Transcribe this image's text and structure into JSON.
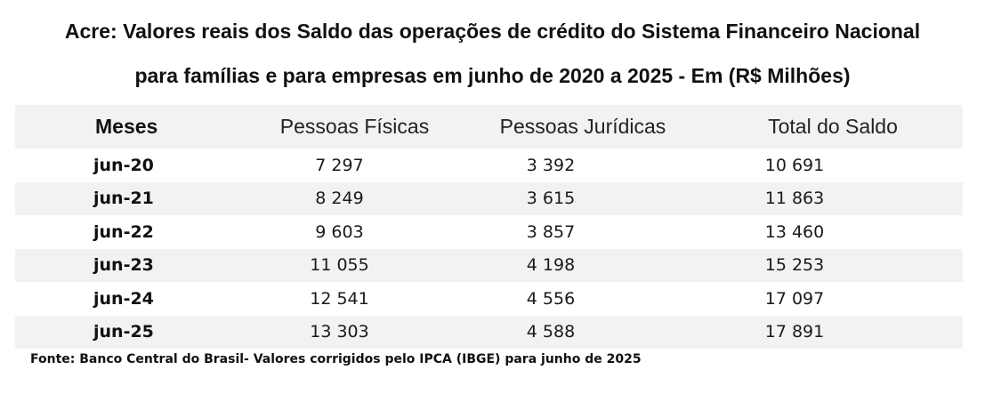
{
  "title": {
    "line1": "Acre: Valores reais dos Saldo das operações de crédito do Sistema Financeiro Nacional",
    "line2": "para famílias e para empresas em junho de 2020 a 2025 - Em (R$ Milhões)"
  },
  "table": {
    "headers": [
      "Meses",
      "Pessoas Físicas",
      "Pessoas Jurídicas",
      "Total do Saldo"
    ],
    "rows": [
      {
        "month": "jun-20",
        "pf": "7 297",
        "pj": "3 392",
        "total": "10 691"
      },
      {
        "month": "jun-21",
        "pf": "8 249",
        "pj": "3 615",
        "total": "11 863"
      },
      {
        "month": "jun-22",
        "pf": "9 603",
        "pj": "3 857",
        "total": "13 460"
      },
      {
        "month": "jun-23",
        "pf": "11 055",
        "pj": "4 198",
        "total": "15 253"
      },
      {
        "month": "jun-24",
        "pf": "12 541",
        "pj": "4 556",
        "total": "17 097"
      },
      {
        "month": "jun-25",
        "pf": "13 303",
        "pj": "4 588",
        "total": "17 891"
      }
    ]
  },
  "source": "Fonte: Banco Central do Brasil- Valores corrigidos pelo IPCA (IBGE) para junho de 2025",
  "colors": {
    "header_band": "#f2f2f2",
    "row_band": "#f2f2f2",
    "text": "#111111"
  }
}
